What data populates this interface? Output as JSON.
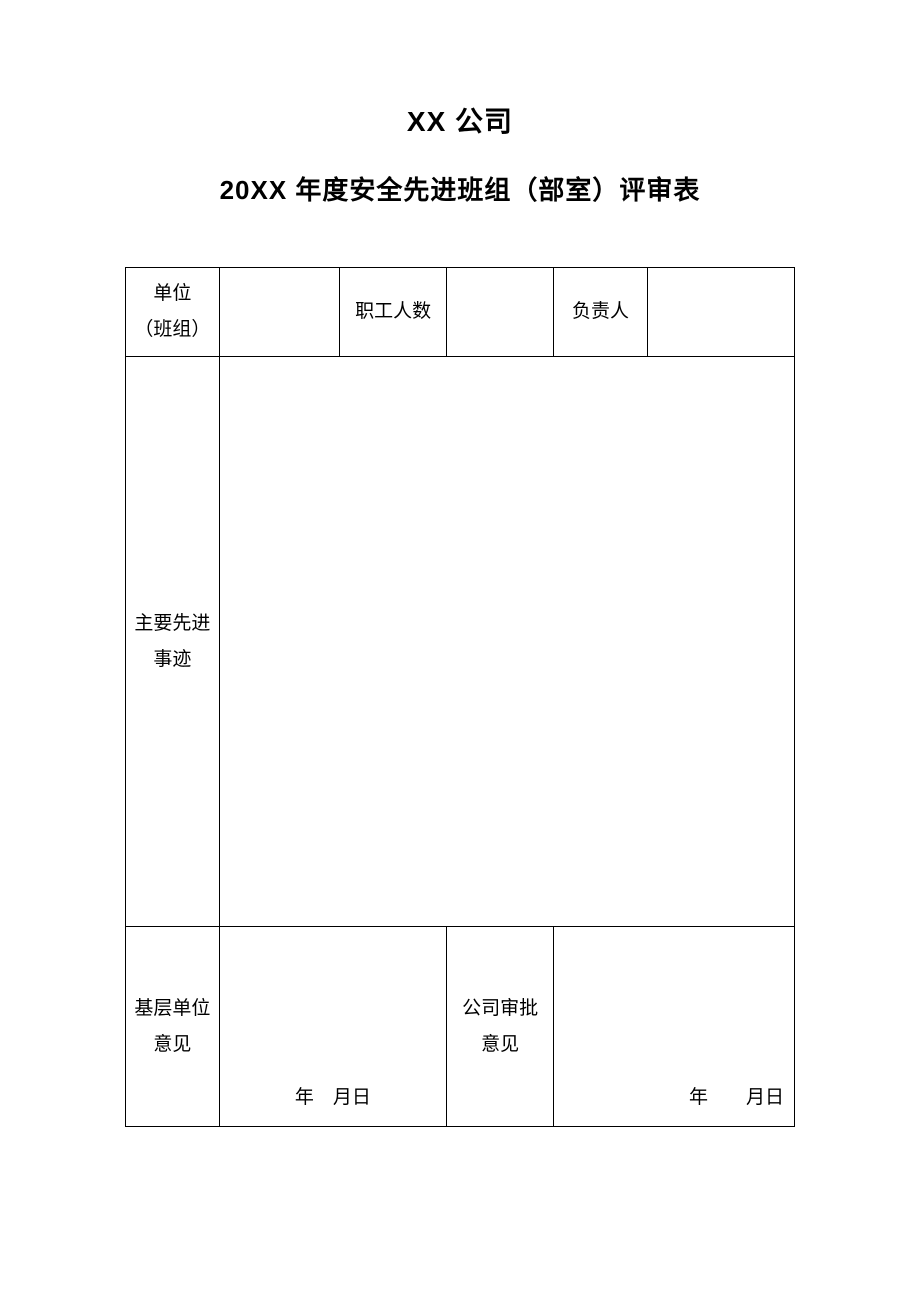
{
  "document": {
    "company_title": "XX 公司",
    "subtitle": "20XX 年度安全先进班组（部室）评审表",
    "table": {
      "row1": {
        "unit_label_line1": "单位",
        "unit_label_line2": "（班组）",
        "unit_value": "",
        "employee_count_label": "职工人数",
        "employee_count_value": "",
        "responsible_label": "负责人",
        "responsible_value": ""
      },
      "row2": {
        "deeds_label_line1": "主要先进",
        "deeds_label_line2": "事迹",
        "deeds_value": ""
      },
      "row3": {
        "base_opinion_label_line1": "基层单位",
        "base_opinion_label_line2": "意见",
        "base_date": "年　月日",
        "company_opinion_label_line1": "公司审批",
        "company_opinion_label_line2": "意见",
        "company_date": "年　　月日"
      }
    },
    "styling": {
      "background_color": "#ffffff",
      "border_color": "#000000",
      "title_fontsize": 28,
      "subtitle_fontsize": 26,
      "cell_fontsize": 19,
      "font_family_title": "SimHei",
      "font_family_body": "SimSun"
    }
  }
}
